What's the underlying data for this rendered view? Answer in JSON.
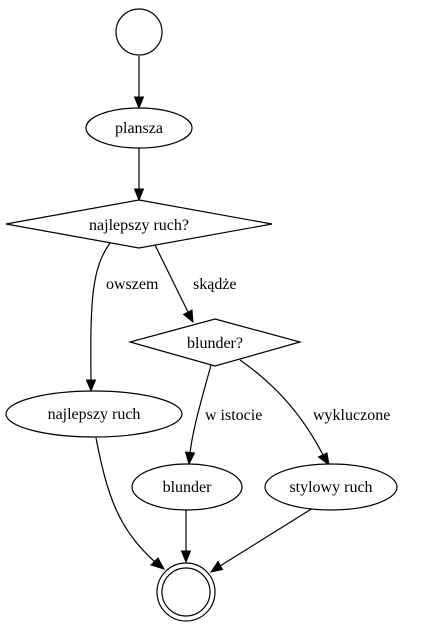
{
  "diagram": {
    "nodes": {
      "start": {
        "label": ""
      },
      "plansza": {
        "label": "plansza"
      },
      "decision_best": {
        "label": "najlepszy ruch?"
      },
      "najlepszy_ruch": {
        "label": "najlepszy ruch"
      },
      "decision_blunder": {
        "label": "blunder?"
      },
      "blunder": {
        "label": "blunder"
      },
      "stylowy_ruch": {
        "label": "stylowy ruch"
      },
      "end": {
        "label": ""
      }
    },
    "edges": {
      "owszem": {
        "label": "owszem"
      },
      "skadze": {
        "label": "skądże"
      },
      "w_istocie": {
        "label": "w istocie"
      },
      "wykluczone": {
        "label": "wykluczone"
      }
    },
    "colors": {
      "stroke": "#000000",
      "fill": "#ffffff",
      "background": "#ffffff"
    }
  }
}
